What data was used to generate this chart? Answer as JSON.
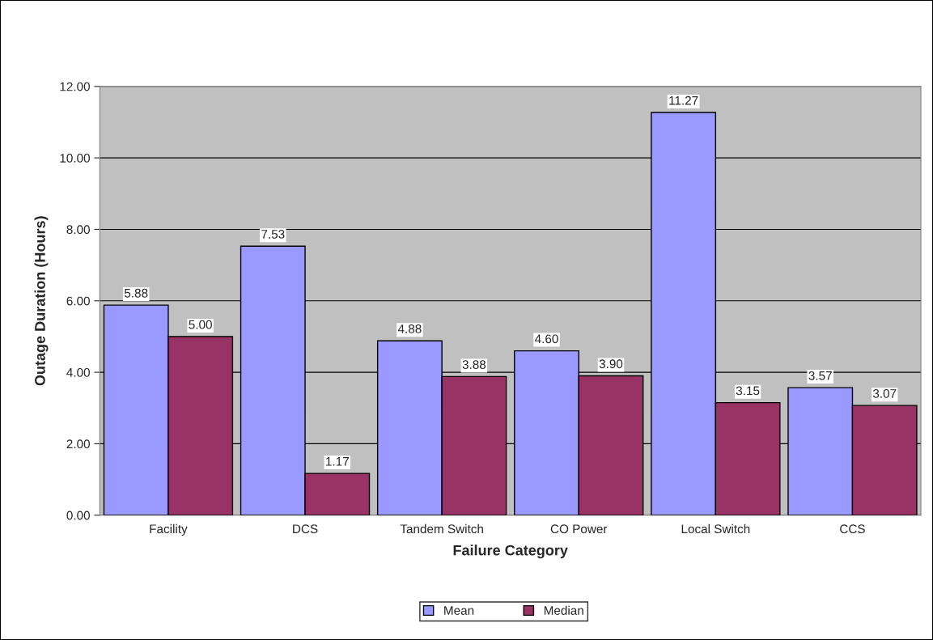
{
  "chart_data": {
    "type": "bar",
    "xlabel": "Failure Category",
    "ylabel": "Outage Duration (Hours)",
    "categories": [
      "Facility",
      "DCS",
      "Tandem Switch",
      "CO Power",
      "Local Switch",
      "CCS"
    ],
    "series": [
      {
        "name": "Mean",
        "color": "#9999ff",
        "values": [
          5.88,
          7.53,
          4.88,
          4.6,
          11.27,
          3.57
        ],
        "value_labels": [
          "5.88",
          "7.53",
          "4.88",
          "4.60",
          "11.27",
          "3.57"
        ]
      },
      {
        "name": "Median",
        "color": "#993366",
        "values": [
          5.0,
          1.17,
          3.88,
          3.9,
          3.15,
          3.07
        ],
        "value_labels": [
          "5.00",
          "1.17",
          "3.88",
          "3.90",
          "3.15",
          "3.07"
        ]
      }
    ],
    "ylim": [
      0,
      12
    ],
    "yticks": [
      {
        "value": 0,
        "label": "0.00"
      },
      {
        "value": 2,
        "label": "2.00"
      },
      {
        "value": 4,
        "label": "4.00"
      },
      {
        "value": 6,
        "label": "6.00"
      },
      {
        "value": 8,
        "label": "8.00"
      },
      {
        "value": 10,
        "label": "10.00"
      },
      {
        "value": 12,
        "label": "12.00"
      }
    ],
    "grid": "y",
    "legend": "bottom"
  }
}
